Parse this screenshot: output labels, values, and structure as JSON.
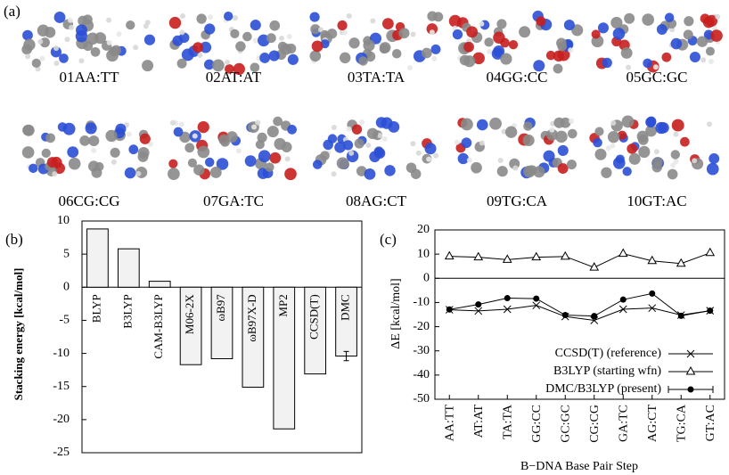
{
  "figure": {
    "panel_label": "(a)",
    "structures": [
      "01AA:TT",
      "02AT:AT",
      "03TA:TA",
      "04GG:CC",
      "05GC:GC",
      "06CG:CG",
      "07GA:TC",
      "08AG:CT",
      "09TG:CA",
      "10GT:AC"
    ]
  },
  "chart_data": [
    {
      "type": "bar",
      "panel_label": "(b)",
      "y_label": "Stacking energy [kcal/mol]",
      "categories": [
        "BLYP",
        "B3LYP",
        "CAM-B3LYP",
        "M06-2X",
        "ωB97",
        "ωB97X-D",
        "MP2",
        "CCSD(T)",
        "DMC"
      ],
      "values": [
        8.8,
        5.8,
        0.9,
        -11.7,
        -10.8,
        -15.1,
        -21.4,
        -13.1,
        -10.4
      ],
      "errors": [
        null,
        null,
        null,
        null,
        null,
        null,
        null,
        null,
        0.7
      ],
      "color": "#f2f2f2",
      "ylim": [
        -25,
        10
      ],
      "yticks": [
        -25,
        -20,
        -15,
        -10,
        -5,
        0,
        5,
        10
      ]
    },
    {
      "type": "line",
      "panel_label": "(c)",
      "y_label": "ΔE [kcal/mol]",
      "x_label": "B−DNA Base Pair Step",
      "categories": [
        "AA:TT",
        "AT:AT",
        "TA:TA",
        "GG:CC",
        "GC:GC",
        "CG:CG",
        "GA:TC",
        "AG:CT",
        "TG:CA",
        "GT:AC"
      ],
      "series": [
        {
          "name": "CCSD(T) (reference)",
          "marker": "x",
          "color": "#000000",
          "values": [
            -13,
            -13.5,
            -12.8,
            -11.2,
            -15.8,
            -17.4,
            -12.8,
            -12.3,
            -15.2,
            -13.4
          ]
        },
        {
          "name": "B3LYP (starting wfn)",
          "marker": "triangle",
          "color": "#000000",
          "values": [
            9.1,
            8.7,
            7.7,
            8.7,
            9.0,
            4.5,
            10.2,
            7.2,
            6.1,
            10.5
          ]
        },
        {
          "name": "DMC/B3LYP (present)",
          "marker": "circle",
          "color": "#000000",
          "values": [
            -12.9,
            -10.8,
            -8.2,
            -8.4,
            -15.2,
            -15.6,
            -8.8,
            -6.3,
            -15.5,
            -13.4
          ]
        }
      ],
      "ylim": [
        -50,
        20
      ],
      "yticks": [
        -50,
        -40,
        -30,
        -20,
        -10,
        0,
        10,
        20
      ],
      "zero_line": true
    }
  ]
}
